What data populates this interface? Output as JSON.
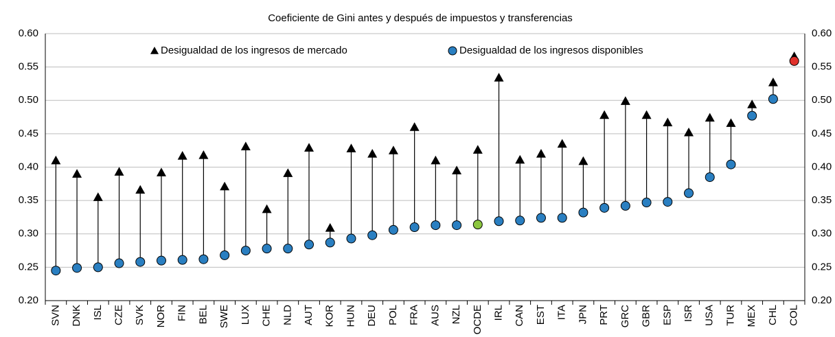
{
  "chart_data": {
    "type": "dumbbell",
    "title": "Coeficiente de Gini antes y después de impuestos y transferencias",
    "categories": [
      "SVN",
      "DNK",
      "ISL",
      "CZE",
      "SVK",
      "NOR",
      "FIN",
      "BEL",
      "SWE",
      "LUX",
      "CHE",
      "NLD",
      "AUT",
      "KOR",
      "HUN",
      "DEU",
      "POL",
      "FRA",
      "AUS",
      "NZL",
      "OCDE",
      "IRL",
      "CAN",
      "EST",
      "ITA",
      "JPN",
      "PRT",
      "GRC",
      "GBR",
      "ESP",
      "ISR",
      "USA",
      "TUR",
      "MEX",
      "CHL",
      "COL"
    ],
    "series": [
      {
        "name": "Desigualdad de los ingresos de mercado",
        "color": "#000000",
        "marker": "triangle",
        "values": [
          0.41,
          0.39,
          0.355,
          0.393,
          0.366,
          0.392,
          0.417,
          0.418,
          0.371,
          0.431,
          0.337,
          0.391,
          0.429,
          0.309,
          0.428,
          0.42,
          0.425,
          0.46,
          0.41,
          0.395,
          0.426,
          0.534,
          0.411,
          0.42,
          0.435,
          0.409,
          0.478,
          0.499,
          0.478,
          0.467,
          0.452,
          0.474,
          0.466,
          0.494,
          0.527,
          0.566
        ]
      },
      {
        "name": "Desigualdad de los ingresos disponibles",
        "color": "#2a7fc1",
        "marker": "circle",
        "values": [
          0.245,
          0.249,
          0.25,
          0.256,
          0.258,
          0.26,
          0.261,
          0.262,
          0.268,
          0.275,
          0.278,
          0.278,
          0.284,
          0.287,
          0.293,
          0.298,
          0.306,
          0.31,
          0.313,
          0.313,
          0.314,
          0.319,
          0.32,
          0.324,
          0.324,
          0.332,
          0.339,
          0.342,
          0.347,
          0.348,
          0.361,
          0.385,
          0.404,
          0.477,
          0.502,
          0.559
        ],
        "colors": [
          "#2a7fc1",
          "#2a7fc1",
          "#2a7fc1",
          "#2a7fc1",
          "#2a7fc1",
          "#2a7fc1",
          "#2a7fc1",
          "#2a7fc1",
          "#2a7fc1",
          "#2a7fc1",
          "#2a7fc1",
          "#2a7fc1",
          "#2a7fc1",
          "#2a7fc1",
          "#2a7fc1",
          "#2a7fc1",
          "#2a7fc1",
          "#2a7fc1",
          "#2a7fc1",
          "#2a7fc1",
          "#8cc63f",
          "#2a7fc1",
          "#2a7fc1",
          "#2a7fc1",
          "#2a7fc1",
          "#2a7fc1",
          "#2a7fc1",
          "#2a7fc1",
          "#2a7fc1",
          "#2a7fc1",
          "#2a7fc1",
          "#2a7fc1",
          "#2a7fc1",
          "#2a7fc1",
          "#2a7fc1",
          "#e0312b"
        ]
      }
    ],
    "ylim": [
      0.2,
      0.6
    ],
    "yticks": [
      {
        "value": 0.2,
        "label": "0.20"
      },
      {
        "value": 0.25,
        "label": "0.25"
      },
      {
        "value": 0.3,
        "label": "0.30"
      },
      {
        "value": 0.35,
        "label": "0.35"
      },
      {
        "value": 0.4,
        "label": "0.40"
      },
      {
        "value": 0.45,
        "label": "0.45"
      },
      {
        "value": 0.5,
        "label": "0.50"
      },
      {
        "value": 0.55,
        "label": "0.55"
      },
      {
        "value": 0.6,
        "label": "0.60"
      }
    ],
    "y2lim": [
      0.2,
      0.6
    ],
    "y2ticks": [
      {
        "value": 0.2,
        "label": "0.20"
      },
      {
        "value": 0.25,
        "label": "0.25"
      },
      {
        "value": 0.3,
        "label": "0.30"
      },
      {
        "value": 0.35,
        "label": "0.35"
      },
      {
        "value": 0.4,
        "label": "0.40"
      },
      {
        "value": 0.45,
        "label": "0.45"
      },
      {
        "value": 0.5,
        "label": "0.50"
      },
      {
        "value": 0.55,
        "label": "0.55"
      },
      {
        "value": 0.6,
        "label": "0.60"
      }
    ],
    "grid": true,
    "legend": "top"
  }
}
